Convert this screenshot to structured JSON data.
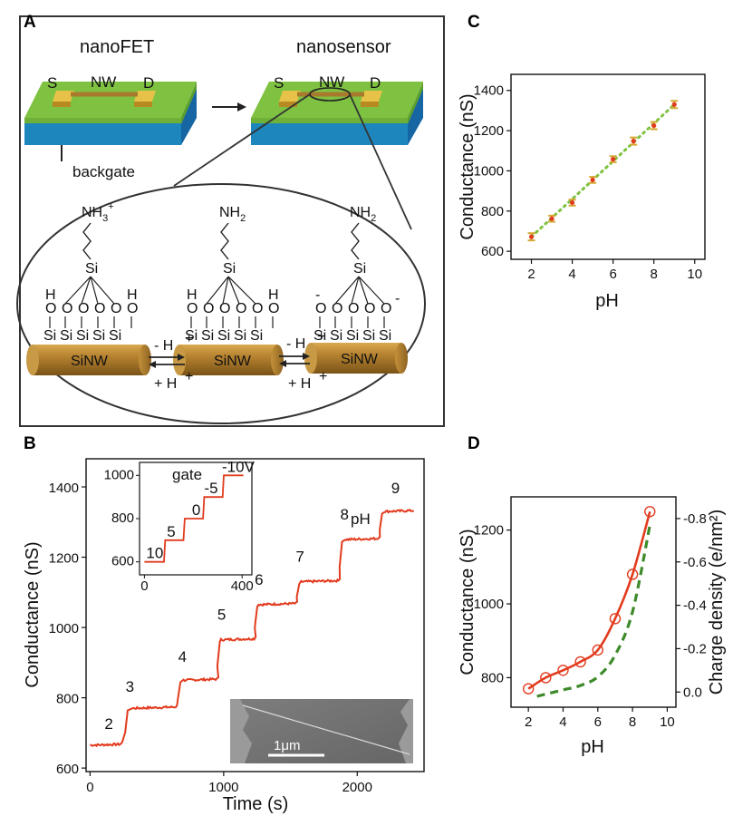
{
  "figure": {
    "panel_labels": {
      "a": "A",
      "b": "B",
      "c": "C",
      "d": "D"
    },
    "schematic": {
      "nanofet_title": "nanoFET",
      "nanosensor_title": "nanosensor",
      "source": "S",
      "drain": "D",
      "wire": "NW",
      "backgate": "backgate",
      "wire_body": "SiNW",
      "deprotonate": "- H",
      "protonate": "+ H",
      "plus": "+",
      "minus": "-",
      "states": [
        {
          "amine": [
            "NH",
            "3",
            "+"
          ],
          "oxygen_labels": [
            "H",
            "O",
            "O",
            "O",
            "O",
            "H",
            "O"
          ]
        },
        {
          "amine": [
            "NH",
            "2"
          ],
          "oxygen_labels": [
            "H",
            "O",
            "O",
            "O",
            "O",
            "H",
            "O"
          ]
        },
        {
          "amine": [
            "NH",
            "2"
          ],
          "oxygen_labels": [
            "O",
            "O",
            "O",
            "O",
            "O"
          ]
        }
      ],
      "silicon": "Si",
      "colors": {
        "green": "#7fc241",
        "blue": "#1f8fc8",
        "gold": "#d4a934",
        "wire": "#a87a2e"
      }
    }
  },
  "chart_data": [
    {
      "panel": "B",
      "type": "line",
      "xlabel": "Time (s)",
      "ylabel": "Conductance (nS)",
      "xlim": [
        -30,
        2500
      ],
      "ylim": [
        590,
        1480
      ],
      "xticks": [
        0,
        1000,
        2000
      ],
      "yticks": [
        600,
        800,
        1000,
        1200,
        1400
      ],
      "legend_title": "pH",
      "color": "#e23b1e",
      "steps": [
        {
          "label": "2",
          "x_start": 0,
          "x_end": 230,
          "y": 665
        },
        {
          "label": "3",
          "x_start": 320,
          "x_end": 640,
          "y": 770
        },
        {
          "label": "4",
          "x_start": 700,
          "x_end": 950,
          "y": 850
        },
        {
          "label": "5",
          "x_start": 980,
          "x_end": 1230,
          "y": 965
        },
        {
          "label": "6",
          "x_start": 1260,
          "x_end": 1540,
          "y": 1065
        },
        {
          "label": "7",
          "x_start": 1580,
          "x_end": 1860,
          "y": 1130
        },
        {
          "label": "8",
          "x_start": 1900,
          "x_end": 2160,
          "y": 1250
        },
        {
          "label": "9",
          "x_start": 2200,
          "x_end": 2430,
          "y": 1330
        }
      ],
      "inset": {
        "type": "line",
        "title": "gate",
        "xlim": [
          -20,
          440
        ],
        "ylim": [
          540,
          1060
        ],
        "xticks": [
          0,
          400
        ],
        "yticks": [
          600,
          800,
          1000
        ],
        "steps": [
          {
            "label": "10",
            "x_start": 0,
            "x_end": 80,
            "y": 600
          },
          {
            "label": "5",
            "x_start": 85,
            "x_end": 160,
            "y": 700
          },
          {
            "label": "0",
            "x_start": 165,
            "x_end": 240,
            "y": 800
          },
          {
            "label": "-5",
            "x_start": 245,
            "x_end": 320,
            "y": 900
          },
          {
            "label": "-10V",
            "x_start": 325,
            "x_end": 405,
            "y": 1000
          }
        ]
      },
      "micrograph_scale": "1μm"
    },
    {
      "panel": "C",
      "type": "scatter",
      "xlabel": "pH",
      "ylabel": "Conductance (nS)",
      "xlim": [
        1,
        10.5
      ],
      "ylim": [
        560,
        1480
      ],
      "xticks": [
        2,
        4,
        6,
        8,
        10
      ],
      "yticks": [
        600,
        800,
        1000,
        1200,
        1400
      ],
      "x": [
        2,
        3,
        4,
        5,
        6,
        7,
        8,
        9
      ],
      "y": [
        672,
        762,
        842,
        955,
        1058,
        1148,
        1225,
        1330
      ],
      "error": [
        18,
        15,
        15,
        15,
        15,
        18,
        18,
        18
      ],
      "point_color": "#e23b1e",
      "error_color": "#d4a934",
      "fit_color": "#7fc241"
    },
    {
      "panel": "D",
      "type": "line",
      "xlabel": "pH",
      "ylabel": "Conductance (nS)",
      "y2label": "Charge density (e/nm²)",
      "xlim": [
        1,
        10.5
      ],
      "ylim": [
        720,
        1290
      ],
      "y2lim": [
        0.07,
        -0.9
      ],
      "xticks": [
        2,
        4,
        6,
        8,
        10
      ],
      "yticks": [
        800,
        1000,
        1200
      ],
      "y2ticks": [
        0.0,
        -0.2,
        -0.4,
        -0.6,
        -0.8
      ],
      "y2ticklabels": [
        "0.0",
        "-0.2",
        "-0.4",
        "-0.6",
        "-0.8"
      ],
      "series": [
        {
          "x": [
            2,
            3,
            4,
            5,
            6,
            7,
            8,
            9
          ],
          "y": [
            770,
            800,
            820,
            843,
            875,
            960,
            1080,
            1250
          ],
          "color": "#e23b1e",
          "style": "solid-with-open-circles"
        },
        {
          "x": [
            2.5,
            3,
            4,
            5,
            6,
            7,
            8,
            9
          ],
          "y2": [
            0.02,
            0.01,
            -0.01,
            -0.03,
            -0.07,
            -0.17,
            -0.37,
            -0.77
          ],
          "color": "#3e8a2a",
          "style": "dashed"
        }
      ]
    }
  ]
}
